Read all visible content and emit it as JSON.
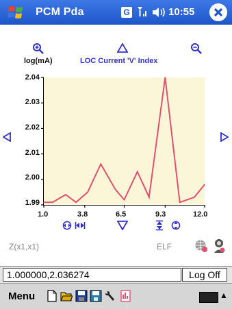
{
  "titlebar": {
    "app_title": "PCM Pda",
    "status_g": "G",
    "time": "10:55"
  },
  "chart_header": {
    "unit_label": "log(mA)",
    "title": "LOC Current 'V' Index"
  },
  "chart_data": {
    "type": "line",
    "title": "LOC Current 'V' Index",
    "ylabel": "log(mA)",
    "xlabel": "",
    "xlim": [
      1.0,
      12.0
    ],
    "ylim": [
      1.99,
      2.04
    ],
    "x_ticks": [
      "1.0",
      "3.8",
      "6.5",
      "9.3",
      "12.0"
    ],
    "y_ticks": [
      "2.04",
      "2.03",
      "2.02",
      "2.01",
      "2.00",
      "1.99"
    ],
    "x": [
      1.0,
      1.6,
      2.5,
      3.2,
      4.0,
      4.9,
      5.9,
      6.5,
      7.4,
      8.2,
      9.3,
      10.3,
      10.8,
      11.3,
      12.0
    ],
    "y": [
      1.991,
      1.991,
      1.994,
      1.991,
      1.995,
      2.006,
      1.996,
      1.992,
      2.003,
      1.993,
      2.04,
      1.991,
      1.992,
      1.993,
      1.998
    ],
    "line_color": "#e05070",
    "grid": false
  },
  "controls": {
    "zoom_in": "⊕",
    "scroll_up": "△",
    "zoom_out": "⊖",
    "scroll_left": "◁",
    "scroll_right": "▷",
    "fit": "◈",
    "stretch": "⋈",
    "scroll_down": "▽",
    "hourglass": "⧗",
    "target": "◈"
  },
  "footer_labels": {
    "function": "Z(x1,x1)",
    "filter": "ELF"
  },
  "status_bar": {
    "coords": "1.000000,2.036274",
    "log_button": "Log Off"
  },
  "menubar": {
    "menu_label": "Menu"
  }
}
